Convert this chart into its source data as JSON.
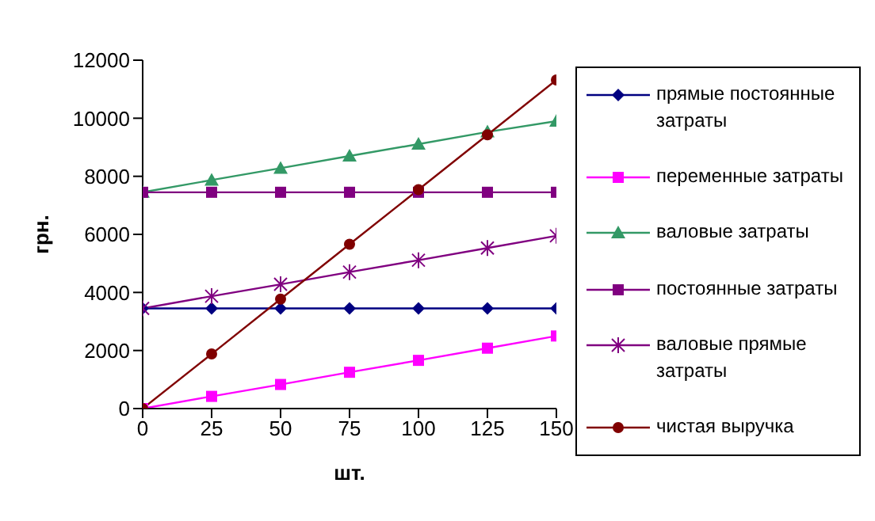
{
  "chart_data": {
    "type": "line",
    "xlabel": "шт.",
    "ylabel": "грн.",
    "x": [
      0,
      25,
      50,
      75,
      100,
      125,
      150
    ],
    "xlim": [
      0,
      150
    ],
    "xticks": [
      0,
      25,
      50,
      75,
      100,
      125,
      150
    ],
    "ylim": [
      0,
      12000
    ],
    "yticks": [
      0,
      2000,
      4000,
      6000,
      8000,
      10000,
      12000
    ],
    "legend": "right",
    "series": [
      {
        "name": "прямые постоянные затраты",
        "color": "#000080",
        "marker": "diamond",
        "values": [
          3450,
          3450,
          3450,
          3450,
          3450,
          3450,
          3450
        ]
      },
      {
        "name": "переменные затраты",
        "color": "#ff00ff",
        "marker": "square",
        "values": [
          0,
          420,
          830,
          1250,
          1660,
          2080,
          2500
        ]
      },
      {
        "name": "валовые затраты",
        "color": "#339966",
        "marker": "triangle",
        "values": [
          7450,
          7870,
          8280,
          8700,
          9110,
          9530,
          9900
        ]
      },
      {
        "name": "постоянные затраты",
        "color": "#800080",
        "marker": "square",
        "values": [
          7450,
          7450,
          7450,
          7450,
          7450,
          7450,
          7450
        ]
      },
      {
        "name": "валовые прямые затраты",
        "color": "#800080",
        "marker": "cross",
        "values": [
          3450,
          3870,
          4280,
          4700,
          5110,
          5530,
          5950
        ]
      },
      {
        "name": "чистая выручка",
        "color": "#800000",
        "marker": "circle",
        "values": [
          0,
          1880,
          3770,
          5660,
          7540,
          9430,
          11320
        ]
      }
    ]
  }
}
